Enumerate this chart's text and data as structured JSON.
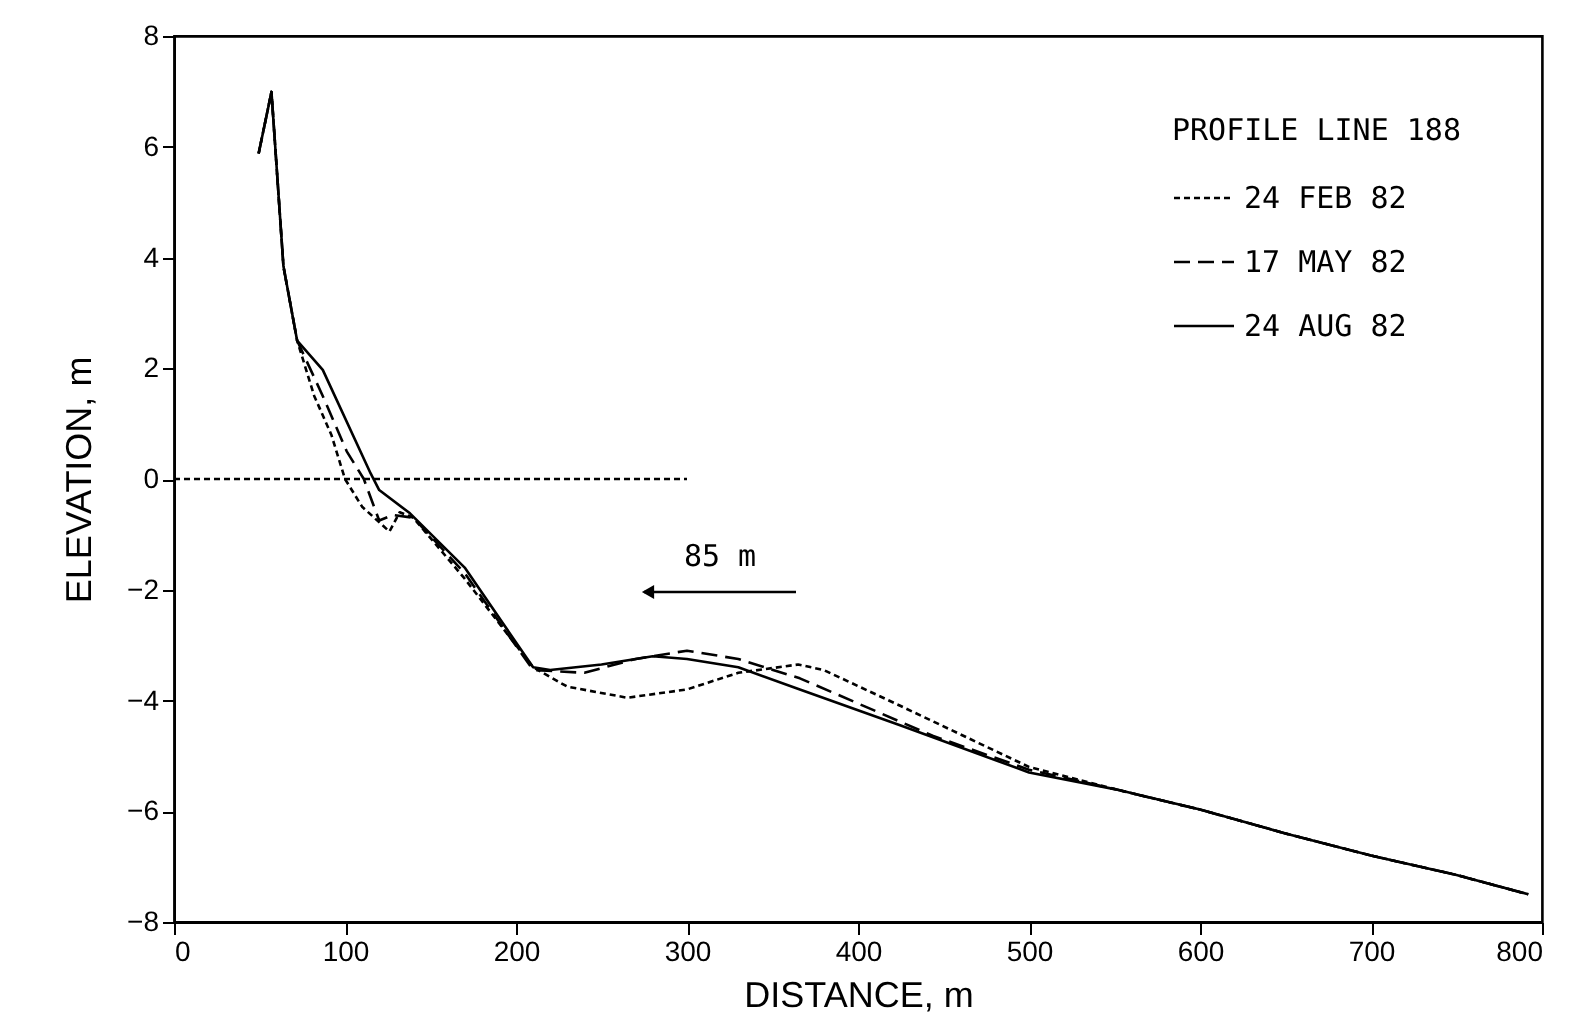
{
  "chart_data": {
    "type": "line",
    "xlabel": "DISTANCE, m",
    "ylabel": "ELEVATION, m",
    "legend_title": "PROFILE LINE 188",
    "legend": "top right",
    "xlim": [
      0,
      800
    ],
    "xticks": [
      0,
      100,
      200,
      300,
      400,
      500,
      600,
      700,
      800
    ],
    "ylim": [
      -8,
      8
    ],
    "yticks": [
      -8,
      -6,
      -4,
      -2,
      0,
      2,
      4,
      6,
      8
    ],
    "annotations": [
      "85 m"
    ],
    "series": [
      {
        "name": "24 FEB 82",
        "color": "#000000",
        "line_style": "dotted",
        "x": [
          49.5,
          57,
          64,
          72,
          82,
          92,
          100,
          110,
          126,
          132,
          140,
          170,
          210,
          230,
          265,
          300,
          330,
          365,
          380,
          425,
          500,
          550,
          600,
          650,
          700,
          750,
          792
        ],
        "values": [
          5.88,
          6.99,
          3.84,
          2.5,
          1.5,
          0.8,
          0,
          -0.5,
          -0.95,
          -0.6,
          -0.7,
          -1.8,
          -3.4,
          -3.75,
          -3.95,
          -3.8,
          -3.5,
          -3.35,
          -3.45,
          -4.1,
          -5.2,
          -5.6,
          -5.97,
          -6.4,
          -6.8,
          -7.15,
          -7.5
        ]
      },
      {
        "name": "17 MAY 82",
        "color": "#000000",
        "line_style": "dashed",
        "x": [
          49.5,
          57,
          64,
          72,
          87,
          101,
          111,
          120,
          128,
          140,
          170,
          210,
          240,
          270,
          300,
          330,
          366,
          444,
          500,
          550,
          600,
          650,
          700,
          750,
          792
        ],
        "values": [
          5.88,
          6.99,
          3.84,
          2.5,
          1.5,
          0.5,
          0,
          -0.75,
          -0.65,
          -0.7,
          -1.7,
          -3.45,
          -3.5,
          -3.25,
          -3.1,
          -3.25,
          -3.6,
          -4.64,
          -5.25,
          -5.6,
          -5.97,
          -6.4,
          -6.8,
          -7.15,
          -7.5
        ]
      },
      {
        "name": "24 AUG 82",
        "color": "#000000",
        "line_style": "solid",
        "x": [
          49.5,
          57,
          64,
          72,
          87,
          115,
          120,
          138,
          170,
          210,
          220,
          250,
          280,
          300,
          330,
          366,
          425,
          500,
          550,
          600,
          650,
          700,
          750,
          792
        ],
        "values": [
          5.88,
          6.99,
          3.84,
          2.5,
          1.97,
          0.1,
          -0.2,
          -0.62,
          -1.6,
          -3.4,
          -3.45,
          -3.35,
          -3.2,
          -3.25,
          -3.4,
          -3.8,
          -4.45,
          -5.3,
          -5.6,
          -5.97,
          -6.4,
          -6.8,
          -7.15,
          -7.5
        ]
      },
      {
        "color": "#000000",
        "line_style": "dotted",
        "x": [
          0,
          300
        ],
        "values": [
          0,
          0
        ]
      }
    ]
  }
}
